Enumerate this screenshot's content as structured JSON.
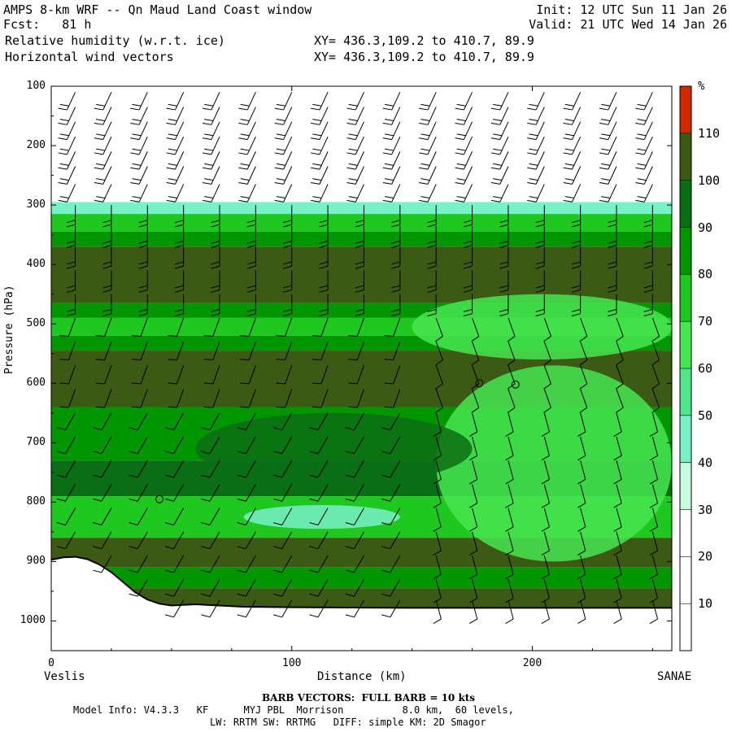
{
  "header": {
    "title": "AMPS 8-km WRF -- Qn Maud Land Coast window",
    "forecast": "Fcst:   81 h",
    "init": "Init: 12 UTC Sun 11 Jan 26",
    "valid": "Valid: 21 UTC Wed 14 Jan 26",
    "field1": "Relative humidity (w.r.t. ice)",
    "field1_xy": "XY= 436.3,109.2 to 410.7, 89.9",
    "field2": "Horizontal wind vectors",
    "field2_xy": "XY= 436.3,109.2 to 410.7, 89.9"
  },
  "chart_data": {
    "type": "heatmap",
    "ylabel": "Pressure (hPa)",
    "xlabel": "Distance (km)",
    "x_left_label": "Veslis",
    "x_right_label": "SANAE",
    "x_range": [
      0,
      258
    ],
    "y_range": [
      1050,
      100
    ],
    "x_ticks": [
      0,
      100,
      200
    ],
    "y_ticks": [
      100,
      200,
      300,
      400,
      500,
      600,
      700,
      800,
      900,
      1000
    ],
    "colorbar": {
      "unit": "%",
      "levels": [
        10,
        20,
        30,
        40,
        50,
        60,
        70,
        80,
        90,
        100,
        110
      ],
      "colors": [
        "#ffffff",
        "#ffffff",
        "#ffffff",
        "#c8fadc",
        "#78f0c8",
        "#50e68c",
        "#46e650",
        "#1ec81e",
        "#009600",
        "#0a6e14",
        "#3c5a14",
        "#d22800"
      ]
    },
    "rh_layers": [
      {
        "p_top": 100,
        "p_bottom": 295,
        "rh": 10
      },
      {
        "p_top": 295,
        "p_bottom": 315,
        "rh": 40
      },
      {
        "p_top": 315,
        "p_bottom": 345,
        "rh": 70
      },
      {
        "p_top": 345,
        "p_bottom": 370,
        "rh": 80
      },
      {
        "p_top": 370,
        "p_bottom": 465,
        "rh": 105
      },
      {
        "p_top": 465,
        "p_bottom": 490,
        "rh": 85
      },
      {
        "p_top": 490,
        "p_bottom": 520,
        "rh": 75
      },
      {
        "p_top": 520,
        "p_bottom": 545,
        "rh": 85
      },
      {
        "p_top": 545,
        "p_bottom": 640,
        "rh": 105
      },
      {
        "p_top": 640,
        "p_bottom": 730,
        "rh": 80
      },
      {
        "p_top": 730,
        "p_bottom": 790,
        "rh": 95
      },
      {
        "p_top": 790,
        "p_bottom": 860,
        "rh": 70
      },
      {
        "p_top": 860,
        "p_bottom": 910,
        "rh": 105
      },
      {
        "p_top": 910,
        "p_bottom": 945,
        "rh": 85
      },
      {
        "p_top": 945,
        "p_bottom": 980,
        "rh": 105
      }
    ],
    "rh_features": [
      {
        "rh": 60,
        "x": [
          150,
          258
        ],
        "p": [
          450,
          560
        ]
      },
      {
        "rh": 65,
        "x": [
          160,
          258
        ],
        "p": [
          570,
          900
        ]
      },
      {
        "rh": 45,
        "x": [
          80,
          145
        ],
        "p": [
          805,
          845
        ]
      },
      {
        "rh": 95,
        "x": [
          60,
          175
        ],
        "p": [
          650,
          770
        ]
      }
    ],
    "terrain": {
      "x": [
        0,
        5,
        10,
        15,
        20,
        25,
        30,
        35,
        40,
        45,
        50,
        55,
        60,
        80,
        100,
        150,
        200,
        258
      ],
      "p": [
        897,
        893,
        892,
        896,
        905,
        918,
        935,
        952,
        964,
        971,
        974,
        973,
        972,
        976,
        977,
        978,
        978,
        978
      ]
    },
    "barb_columns_km": [
      10,
      25,
      40,
      55,
      70,
      85,
      100,
      115,
      130,
      145,
      160,
      175,
      190,
      205,
      220,
      235,
      250
    ],
    "barb_levels_hpa": [
      110,
      135,
      160,
      185,
      210,
      235,
      265,
      300,
      335,
      370,
      410,
      450,
      490,
      530,
      570,
      610,
      650,
      690,
      730,
      770,
      810,
      850,
      890,
      930,
      965
    ],
    "calm_points": [
      {
        "x": 45,
        "p": 795
      },
      {
        "x": 178,
        "p": 600
      },
      {
        "x": 193,
        "p": 602
      }
    ]
  },
  "footer": {
    "barb_note": "BARB VECTORS:  FULL BARB = 10 kts",
    "model_info": "Model Info: V4.3.3   KF      MYJ PBL  Morrison          8.0 km,  60 levels,",
    "model_info2": "LW: RRTM SW: RRTMG   DIFF: simple KM: 2D Smagor"
  }
}
